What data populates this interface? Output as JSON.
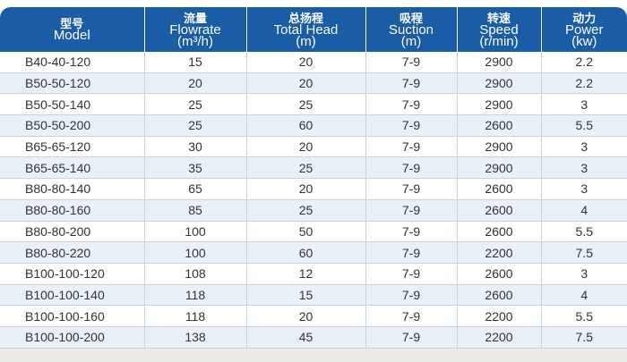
{
  "header": [
    {
      "cn": "型号",
      "en": "Model",
      "unit": ""
    },
    {
      "cn": "流量",
      "en": "Flowrate",
      "unit": "(m³/h)"
    },
    {
      "cn": "总扬程",
      "en": "Total Head",
      "unit": "(m)"
    },
    {
      "cn": "吸程",
      "en": "Suction",
      "unit": "(m)"
    },
    {
      "cn": "转速",
      "en": "Speed",
      "unit": "(r/min)"
    },
    {
      "cn": "动力",
      "en": "Power",
      "unit": "(kw)"
    }
  ],
  "rows": [
    [
      "B40-40-120",
      "15",
      "20",
      "7-9",
      "2900",
      "2.2"
    ],
    [
      "B50-50-120",
      "20",
      "20",
      "7-9",
      "2900",
      "2.2"
    ],
    [
      "B50-50-140",
      "25",
      "25",
      "7-9",
      "2900",
      "3"
    ],
    [
      "B50-50-200",
      "25",
      "60",
      "7-9",
      "2600",
      "5.5"
    ],
    [
      "B65-65-120",
      "30",
      "20",
      "7-9",
      "2900",
      "3"
    ],
    [
      "B65-65-140",
      "35",
      "25",
      "7-9",
      "2900",
      "3"
    ],
    [
      "B80-80-140",
      "65",
      "20",
      "7-9",
      "2600",
      "3"
    ],
    [
      "B80-80-160",
      "85",
      "25",
      "7-9",
      "2600",
      "4"
    ],
    [
      "B80-80-200",
      "100",
      "50",
      "7-9",
      "2600",
      "5.5"
    ],
    [
      "B80-80-220",
      "100",
      "60",
      "7-9",
      "2200",
      "7.5"
    ],
    [
      "B100-100-120",
      "108",
      "12",
      "7-9",
      "2600",
      "3"
    ],
    [
      "B100-100-140",
      "118",
      "15",
      "7-9",
      "2600",
      "4"
    ],
    [
      "B100-100-160",
      "118",
      "20",
      "7-9",
      "2200",
      "5.5"
    ],
    [
      "B100-100-200",
      "138",
      "45",
      "7-9",
      "2200",
      "7.5"
    ]
  ],
  "colors": {
    "header": "#1b5ca7",
    "alt_row": "#e9f0f7"
  }
}
